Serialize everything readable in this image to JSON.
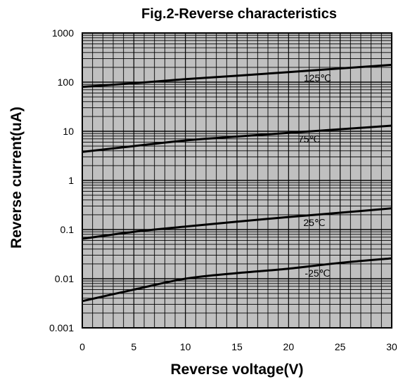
{
  "chart_data": {
    "type": "line",
    "title": "Fig.2-Reverse characteristics",
    "xlabel": "Reverse voltage(V)",
    "ylabel": "Reverse current(uA)",
    "xlim": [
      0,
      30
    ],
    "ylim": [
      0.001,
      1000
    ],
    "yscale": "log",
    "x_ticks": [
      "0",
      "5",
      "10",
      "15",
      "20",
      "25",
      "30"
    ],
    "y_ticks": [
      "1000",
      "100",
      "10",
      "1",
      "0.1",
      "0.01",
      "0.001"
    ],
    "grid": true,
    "background": "#c0c0c0",
    "line_color": "#000000",
    "series": [
      {
        "name": "125℃",
        "x": [
          0,
          5,
          10,
          15,
          20,
          25,
          30
        ],
        "y": [
          80,
          95,
          115,
          135,
          160,
          190,
          225
        ]
      },
      {
        "name": "75℃",
        "x": [
          0,
          5,
          10,
          15,
          20,
          25,
          30
        ],
        "y": [
          3.8,
          5.0,
          6.5,
          7.8,
          9.3,
          11.0,
          13.0
        ]
      },
      {
        "name": "25℃",
        "x": [
          0,
          5,
          10,
          15,
          20,
          25,
          30
        ],
        "y": [
          0.065,
          0.09,
          0.115,
          0.145,
          0.18,
          0.22,
          0.27
        ]
      },
      {
        "name": "-25℃",
        "x": [
          0,
          5,
          10,
          15,
          20,
          25,
          30
        ],
        "y": [
          0.0035,
          0.006,
          0.01,
          0.013,
          0.016,
          0.021,
          0.026
        ]
      }
    ]
  }
}
